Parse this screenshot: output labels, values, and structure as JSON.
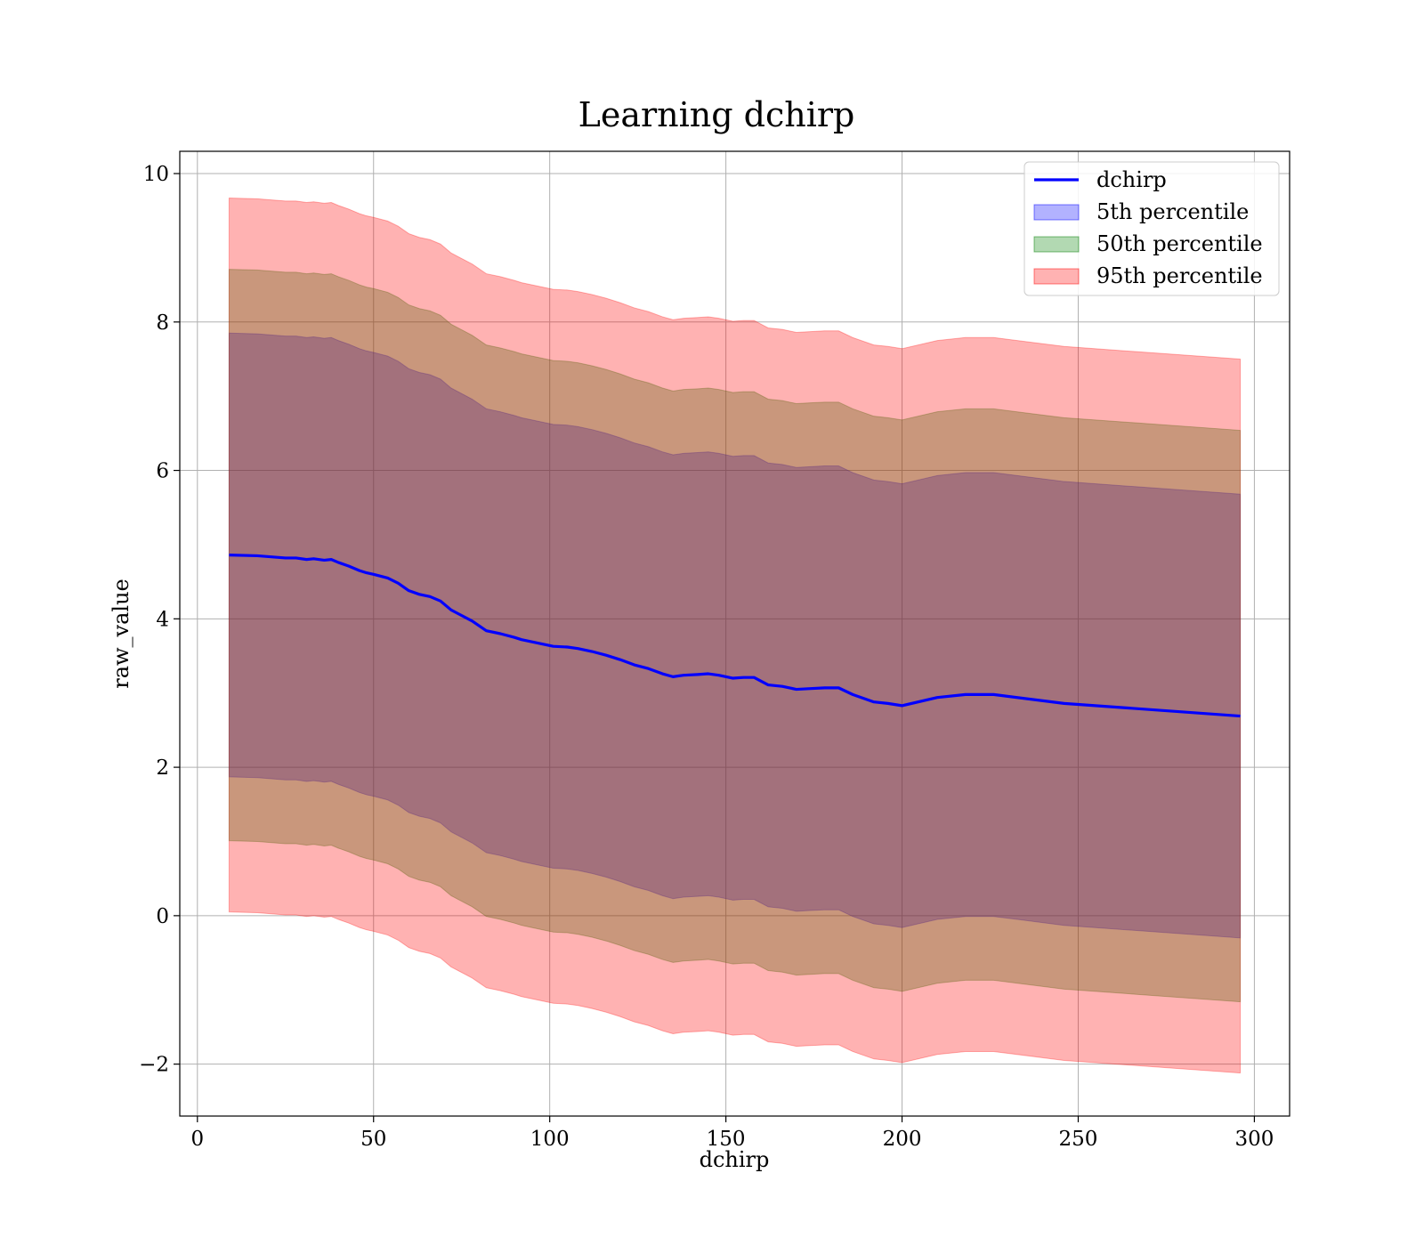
{
  "chart_data": {
    "type": "line",
    "title": "Learning dchirp",
    "xlabel": "dchirp",
    "ylabel": "raw_value",
    "xlim": [
      -5,
      310
    ],
    "ylim": [
      -2.7,
      10.3
    ],
    "xticks": [
      0,
      50,
      100,
      150,
      200,
      250,
      300
    ],
    "yticks": [
      -2,
      0,
      2,
      4,
      6,
      8,
      10
    ],
    "xtick_labels": [
      "0",
      "50",
      "100",
      "150",
      "200",
      "250",
      "300"
    ],
    "ytick_labels": [
      "−2",
      "0",
      "2",
      "4",
      "6",
      "8",
      "10"
    ],
    "grid": true,
    "legend_position": "upper right",
    "x": [
      9,
      17,
      25,
      28,
      31,
      33,
      36,
      38,
      40,
      43,
      46,
      48,
      50,
      54,
      57,
      60,
      63,
      66,
      69,
      72,
      74,
      78,
      82,
      86,
      90,
      92,
      95,
      98,
      101,
      105,
      108,
      112,
      116,
      120,
      124,
      128,
      132,
      135,
      138,
      142,
      145,
      148,
      152,
      155,
      158,
      162,
      166,
      170,
      174,
      178,
      182,
      186,
      192,
      196,
      200,
      210,
      218,
      226,
      246,
      296
    ],
    "series": [
      {
        "name": "dchirp",
        "color": "#0000ff",
        "kind": "line",
        "values": [
          4.86,
          4.85,
          4.82,
          4.82,
          4.8,
          4.81,
          4.79,
          4.8,
          4.76,
          4.71,
          4.65,
          4.62,
          4.6,
          4.55,
          4.48,
          4.38,
          4.33,
          4.3,
          4.24,
          4.12,
          4.07,
          3.97,
          3.84,
          3.8,
          3.75,
          3.72,
          3.69,
          3.66,
          3.63,
          3.62,
          3.6,
          3.56,
          3.51,
          3.45,
          3.38,
          3.33,
          3.26,
          3.22,
          3.24,
          3.25,
          3.26,
          3.24,
          3.2,
          3.21,
          3.21,
          3.11,
          3.09,
          3.05,
          3.06,
          3.07,
          3.07,
          2.98,
          2.88,
          2.86,
          2.83,
          2.94,
          2.98,
          2.98,
          2.86,
          2.69
        ]
      },
      {
        "name": "5th percentile",
        "color": "#0000ff",
        "alpha": 0.3,
        "kind": "band",
        "lower": [
          1.87,
          1.86,
          1.83,
          1.83,
          1.81,
          1.82,
          1.8,
          1.81,
          1.77,
          1.72,
          1.66,
          1.63,
          1.61,
          1.56,
          1.49,
          1.39,
          1.34,
          1.31,
          1.25,
          1.13,
          1.08,
          0.98,
          0.85,
          0.81,
          0.76,
          0.73,
          0.7,
          0.67,
          0.64,
          0.63,
          0.61,
          0.57,
          0.52,
          0.46,
          0.39,
          0.34,
          0.27,
          0.23,
          0.25,
          0.26,
          0.27,
          0.25,
          0.21,
          0.22,
          0.22,
          0.12,
          0.1,
          0.06,
          0.07,
          0.08,
          0.08,
          -0.01,
          -0.11,
          -0.13,
          -0.16,
          -0.05,
          -0.01,
          -0.01,
          -0.13,
          -0.3
        ],
        "upper": [
          7.85,
          7.84,
          7.81,
          7.81,
          7.79,
          7.8,
          7.78,
          7.79,
          7.75,
          7.7,
          7.64,
          7.61,
          7.59,
          7.54,
          7.47,
          7.37,
          7.32,
          7.29,
          7.23,
          7.11,
          7.06,
          6.96,
          6.83,
          6.79,
          6.74,
          6.71,
          6.68,
          6.65,
          6.62,
          6.61,
          6.59,
          6.55,
          6.5,
          6.44,
          6.37,
          6.32,
          6.25,
          6.21,
          6.23,
          6.24,
          6.25,
          6.23,
          6.19,
          6.2,
          6.2,
          6.1,
          6.08,
          6.04,
          6.05,
          6.06,
          6.06,
          5.97,
          5.87,
          5.85,
          5.82,
          5.93,
          5.97,
          5.97,
          5.85,
          5.68
        ]
      },
      {
        "name": "50th percentile",
        "color": "#008000",
        "alpha": 0.3,
        "kind": "band",
        "lower": [
          1.01,
          1.0,
          0.97,
          0.97,
          0.95,
          0.96,
          0.94,
          0.95,
          0.91,
          0.86,
          0.8,
          0.77,
          0.75,
          0.7,
          0.63,
          0.53,
          0.48,
          0.45,
          0.39,
          0.27,
          0.22,
          0.12,
          -0.01,
          -0.05,
          -0.1,
          -0.13,
          -0.16,
          -0.19,
          -0.22,
          -0.23,
          -0.25,
          -0.29,
          -0.34,
          -0.4,
          -0.47,
          -0.52,
          -0.59,
          -0.63,
          -0.61,
          -0.6,
          -0.59,
          -0.61,
          -0.65,
          -0.64,
          -0.64,
          -0.74,
          -0.76,
          -0.8,
          -0.79,
          -0.78,
          -0.78,
          -0.87,
          -0.97,
          -0.99,
          -1.02,
          -0.91,
          -0.87,
          -0.87,
          -0.99,
          -1.16
        ],
        "upper": [
          8.71,
          8.7,
          8.67,
          8.67,
          8.65,
          8.66,
          8.64,
          8.65,
          8.61,
          8.56,
          8.5,
          8.47,
          8.45,
          8.4,
          8.33,
          8.23,
          8.18,
          8.15,
          8.09,
          7.97,
          7.92,
          7.82,
          7.69,
          7.65,
          7.6,
          7.57,
          7.54,
          7.51,
          7.48,
          7.47,
          7.45,
          7.41,
          7.36,
          7.3,
          7.23,
          7.18,
          7.11,
          7.07,
          7.09,
          7.1,
          7.11,
          7.09,
          7.05,
          7.06,
          7.06,
          6.96,
          6.94,
          6.9,
          6.91,
          6.92,
          6.92,
          6.83,
          6.73,
          6.71,
          6.68,
          6.79,
          6.83,
          6.83,
          6.71,
          6.54
        ]
      },
      {
        "name": "95th percentile",
        "color": "#ff0000",
        "alpha": 0.3,
        "kind": "band",
        "lower": [
          0.05,
          0.04,
          0.01,
          0.01,
          -0.01,
          0.0,
          -0.02,
          -0.01,
          -0.05,
          -0.1,
          -0.16,
          -0.19,
          -0.21,
          -0.26,
          -0.33,
          -0.43,
          -0.48,
          -0.51,
          -0.57,
          -0.69,
          -0.74,
          -0.84,
          -0.97,
          -1.01,
          -1.06,
          -1.09,
          -1.12,
          -1.15,
          -1.18,
          -1.19,
          -1.21,
          -1.25,
          -1.3,
          -1.36,
          -1.43,
          -1.48,
          -1.55,
          -1.59,
          -1.57,
          -1.56,
          -1.55,
          -1.57,
          -1.61,
          -1.6,
          -1.6,
          -1.7,
          -1.72,
          -1.76,
          -1.75,
          -1.74,
          -1.74,
          -1.83,
          -1.93,
          -1.95,
          -1.98,
          -1.87,
          -1.83,
          -1.83,
          -1.95,
          -2.12
        ],
        "upper": [
          9.67,
          9.66,
          9.63,
          9.63,
          9.61,
          9.62,
          9.6,
          9.61,
          9.57,
          9.52,
          9.46,
          9.43,
          9.41,
          9.36,
          9.29,
          9.19,
          9.14,
          9.11,
          9.05,
          8.93,
          8.88,
          8.78,
          8.65,
          8.61,
          8.56,
          8.53,
          8.5,
          8.47,
          8.44,
          8.43,
          8.41,
          8.37,
          8.32,
          8.26,
          8.19,
          8.14,
          8.07,
          8.03,
          8.05,
          8.06,
          8.07,
          8.05,
          8.01,
          8.02,
          8.02,
          7.92,
          7.9,
          7.86,
          7.87,
          7.88,
          7.88,
          7.79,
          7.69,
          7.67,
          7.64,
          7.75,
          7.79,
          7.79,
          7.67,
          7.5
        ]
      }
    ]
  }
}
